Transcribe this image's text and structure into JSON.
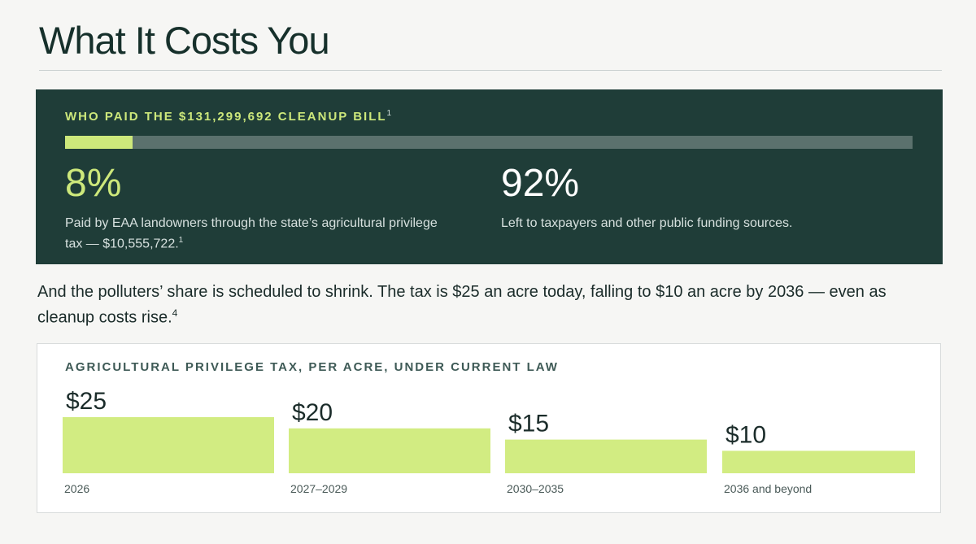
{
  "page": {
    "title": "What It Costs You"
  },
  "cleanup": {
    "heading": "WHO PAID THE $131,299,692 CLEANUP BILL",
    "heading_note": "1",
    "landowner_share_fraction": 0.08,
    "left_value": "8%",
    "left_desc": "Paid by EAA landowners through the state’s agricultural privilege tax — $10,555,722.",
    "left_note": "1",
    "right_value": "92%",
    "right_desc": "Left to taxpayers and other public funding sources."
  },
  "lede": {
    "text": "And the polluters’ share is scheduled to shrink. The tax is $25 an acre today, falling to $10 an acre by 2036 — even as cleanup costs rise.",
    "note": "4"
  },
  "colors": {
    "panel_bg": "#1f3d38",
    "accent_green": "#cde87b",
    "bar_green": "#d2ec82"
  },
  "chart_data": {
    "type": "bar",
    "title": "AGRICULTURAL PRIVILEGE TAX, PER ACRE, UNDER CURRENT LAW",
    "categories": [
      "2026",
      "2027–2029",
      "2030–2035",
      "2036 and beyond"
    ],
    "values": [
      25,
      20,
      15,
      10
    ],
    "value_labels": [
      "$25",
      "$20",
      "$15",
      "$10"
    ],
    "xlabel": "",
    "ylabel": "",
    "ylim": [
      0,
      25
    ],
    "grid": false,
    "legend": "none"
  }
}
